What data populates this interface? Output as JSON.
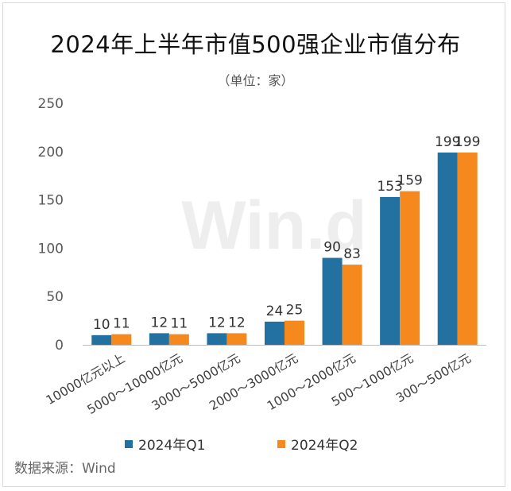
{
  "chart_data": {
    "type": "bar",
    "title": "2024年上半年市值500强企业市值分布",
    "subtitle": "（单位：家）",
    "categories": [
      "10000亿元以上",
      "5000～10000亿元",
      "3000～5000亿元",
      "2000～3000亿元",
      "1000～2000亿元",
      "500～1000亿元",
      "300～500亿元"
    ],
    "series": [
      {
        "name": "2024年Q1",
        "values": [
          10,
          12,
          12,
          24,
          90,
          153,
          199
        ],
        "color": "#2271a0"
      },
      {
        "name": "2024年Q2",
        "values": [
          11,
          11,
          12,
          25,
          83,
          159,
          199
        ],
        "color": "#f5891e"
      }
    ],
    "yticks": [
      0,
      50,
      100,
      150,
      200,
      250
    ],
    "ylim": [
      0,
      250
    ],
    "xlabel": "",
    "ylabel": "",
    "grid": false,
    "legend": "bottom"
  },
  "source": "数据来源：Wind",
  "watermark": "Win.d"
}
